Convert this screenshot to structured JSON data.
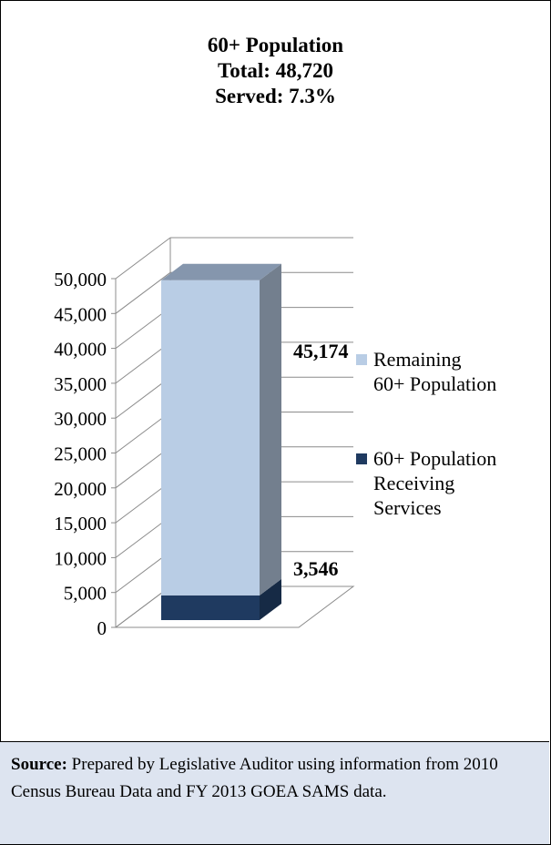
{
  "title": {
    "line1": "60+ Population",
    "line2": "Total: 48,720",
    "line3": "Served: 7.3%"
  },
  "chart_data": {
    "type": "bar",
    "stacked": true,
    "three_d": true,
    "categories": [
      ""
    ],
    "series": [
      {
        "name": "60+ Population Receiving Services",
        "values": [
          3546
        ],
        "color": "#1f3a60",
        "label": "3,546"
      },
      {
        "name": "Remaining 60+ Population",
        "values": [
          45174
        ],
        "color": "#b9cde5",
        "label": "45,174"
      }
    ],
    "legend": [
      {
        "lines": [
          "Remaining",
          "60+ Population"
        ],
        "color": "#b9cde5"
      },
      {
        "lines": [
          "60+ Population",
          "Receiving",
          "Services"
        ],
        "color": "#1f3a60"
      }
    ],
    "yticks": [
      "0",
      "5,000",
      "10,000",
      "15,000",
      "20,000",
      "25,000",
      "30,000",
      "35,000",
      "40,000",
      "45,000",
      "50,000"
    ],
    "ylim": [
      0,
      50000
    ],
    "grid": true,
    "legend_position": "right"
  },
  "source": {
    "label": "Source:",
    "text": " Prepared by Legislative Auditor using information from 2010 Census Bureau Data and FY 2013 GOEA SAMS data."
  }
}
